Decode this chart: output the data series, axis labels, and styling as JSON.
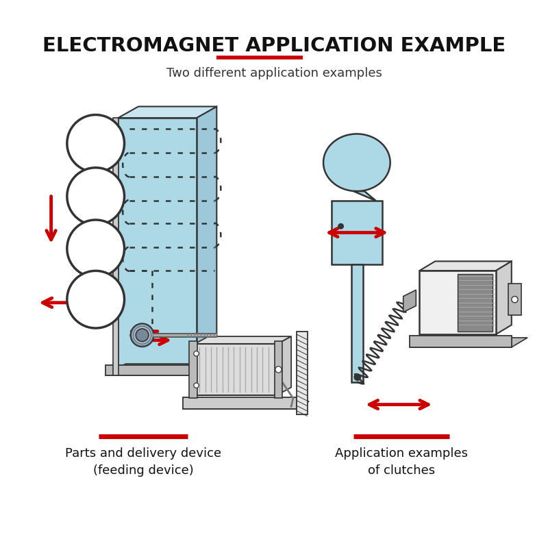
{
  "title": "ELECTROMAGNET APPLICATION EXAMPLE",
  "subtitle": "Two different application examples",
  "label1": "Parts and delivery device\n(feeding device)",
  "label2": "Application examples\nof clutches",
  "title_color": "#111111",
  "subtitle_color": "#333333",
  "red_color": "#cc0000",
  "light_blue": "#add8e6",
  "arrow_color": "#cc0000",
  "bg_color": "#ffffff",
  "underline_color": "#cc0000",
  "label_underline_color": "#cc0000",
  "dark_line": "#333333",
  "gray_light": "#dddddd",
  "gray_mid": "#bbbbbb"
}
